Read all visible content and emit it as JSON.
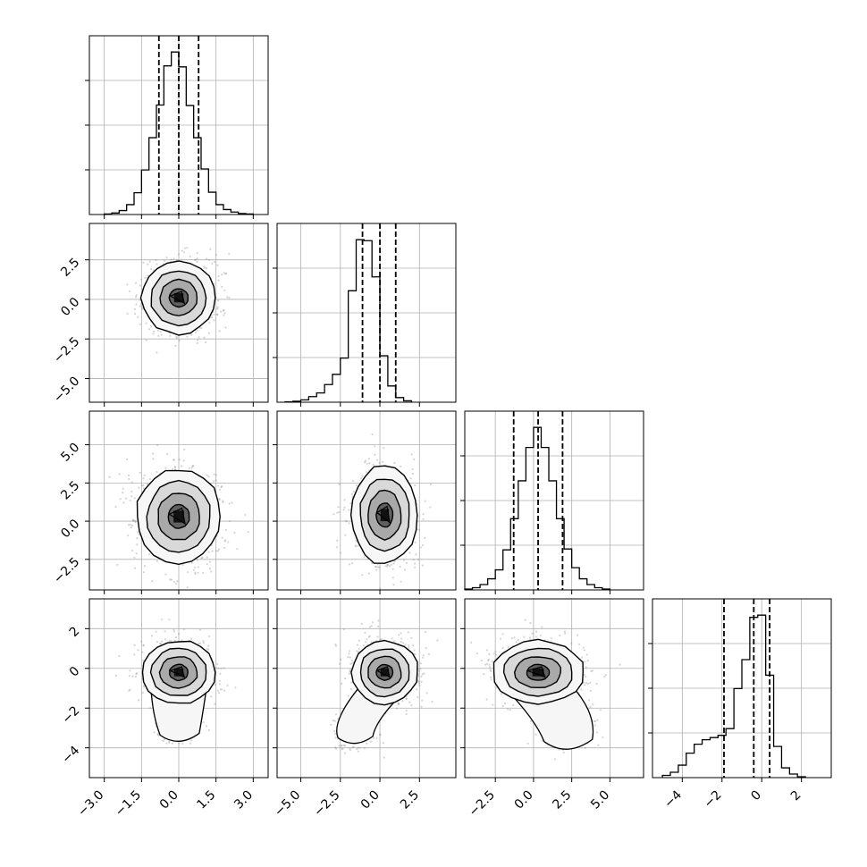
{
  "chart_data": {
    "type": "corner",
    "grid": true,
    "parameters": [
      {
        "range": [
          -3.6,
          3.6
        ],
        "ticks": [
          -3.0,
          -1.5,
          0.0,
          1.5,
          3.0
        ],
        "tick_labels": [
          "−3.0",
          "−1.5",
          "0.0",
          "1.5",
          "3.0"
        ],
        "quantiles": [
          -0.8,
          0.0,
          0.8
        ],
        "histogram": {
          "bin_start": -3.0,
          "bin_width": 0.3,
          "counts": [
            1,
            3,
            8,
            20,
            44,
            90,
            155,
            221,
            300,
            328,
            298,
            220,
            155,
            92,
            45,
            20,
            10,
            5,
            2,
            1
          ]
        }
      },
      {
        "range": [
          -6.5,
          4.8
        ],
        "ticks": [
          -5.0,
          -2.5,
          0.0,
          2.5
        ],
        "tick_labels": [
          "−5.0",
          "−2.5",
          "0.0",
          "2.5"
        ],
        "quantiles": [
          -1.1,
          0.0,
          1.0
        ],
        "histogram": {
          "bin_start": -6.0,
          "bin_width": 0.5,
          "counts": [
            1,
            2,
            5,
            12,
            20,
            38,
            60,
            95,
            240,
            350,
            348,
            270,
            100,
            35,
            10,
            3
          ]
        }
      },
      {
        "range": [
          -4.5,
          7.2
        ],
        "ticks": [
          -2.5,
          0.0,
          2.5,
          5.0
        ],
        "tick_labels": [
          "−2.5",
          "0.0",
          "2.5",
          "5.0"
        ],
        "quantiles": [
          -1.3,
          0.3,
          1.9
        ],
        "histogram": {
          "bin_start": -4.5,
          "bin_width": 0.5,
          "counts": [
            2,
            5,
            12,
            25,
            45,
            90,
            160,
            245,
            320,
            365,
            320,
            245,
            160,
            92,
            50,
            25,
            12,
            5,
            2
          ]
        }
      },
      {
        "range": [
          -5.5,
          3.5
        ],
        "ticks": [
          -4,
          -2,
          0,
          2
        ],
        "tick_labels": [
          "−4",
          "−2",
          "0",
          "2"
        ],
        "quantiles": [
          -1.9,
          -0.4,
          0.4
        ],
        "histogram": {
          "bin_start": -5.0,
          "bin_width": 0.4,
          "counts": [
            5,
            12,
            28,
            55,
            75,
            85,
            90,
            95,
            110,
            200,
            265,
            360,
            365,
            230,
            70,
            22,
            8,
            2
          ]
        }
      }
    ],
    "pairs": [
      {
        "row": 1,
        "col": 0,
        "mean": [
          0.0,
          0.1
        ],
        "sd": [
          0.75,
          1.15
        ],
        "tail": null
      },
      {
        "row": 2,
        "col": 0,
        "mean": [
          0.0,
          0.3
        ],
        "sd": [
          0.85,
          1.55
        ],
        "tail": null
      },
      {
        "row": 2,
        "col": 1,
        "mean": [
          0.3,
          0.4
        ],
        "sd": [
          1.05,
          1.6
        ],
        "tail": null
      },
      {
        "row": 3,
        "col": 0,
        "mean": [
          0.0,
          -0.2
        ],
        "sd": [
          0.75,
          0.8
        ],
        "tail": [
          0.0,
          -2.8
        ]
      },
      {
        "row": 3,
        "col": 1,
        "mean": [
          0.3,
          -0.2
        ],
        "sd": [
          1.05,
          0.8
        ],
        "tail": [
          -1.6,
          -3.0
        ]
      },
      {
        "row": 3,
        "col": 2,
        "mean": [
          0.3,
          -0.2
        ],
        "sd": [
          1.5,
          0.8
        ],
        "tail": [
          2.2,
          -3.0
        ]
      }
    ]
  }
}
